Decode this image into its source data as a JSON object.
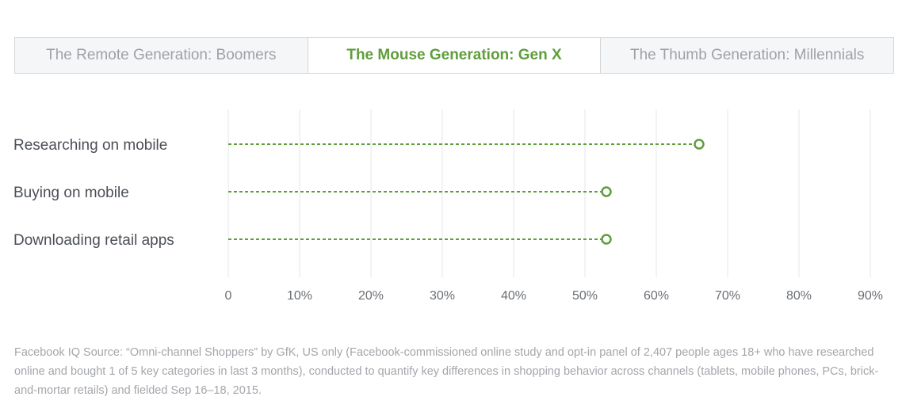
{
  "tabs": [
    {
      "label": "The Remote Generation: Boomers",
      "active": false
    },
    {
      "label": "The Mouse Generation: Gen X",
      "active": true
    },
    {
      "label": "The Thumb Generation: Millennials",
      "active": false
    }
  ],
  "chart_data": {
    "type": "dot",
    "categories": [
      "Researching on mobile",
      "Buying on mobile",
      "Downloading retail apps"
    ],
    "values": [
      66,
      53,
      53
    ],
    "xlim": [
      0,
      90
    ],
    "xticks": [
      "0",
      "10%",
      "20%",
      "30%",
      "40%",
      "50%",
      "60%",
      "70%",
      "80%",
      "90%"
    ],
    "grid": true,
    "series_color": "#5f9e3b"
  },
  "footnote": "Facebook IQ Source: “Omni-channel Shoppers” by GfK, US only (Facebook-commissioned online study and opt-in panel of 2,407 people ages 18+ who have researched online and bought 1 of 5 key categories in last 3 months), conducted to quantify key differences in shopping behavior across channels (tablets, mobile phones, PCs, brick-and-mortar retails) and fielded Sep 16–18, 2015."
}
